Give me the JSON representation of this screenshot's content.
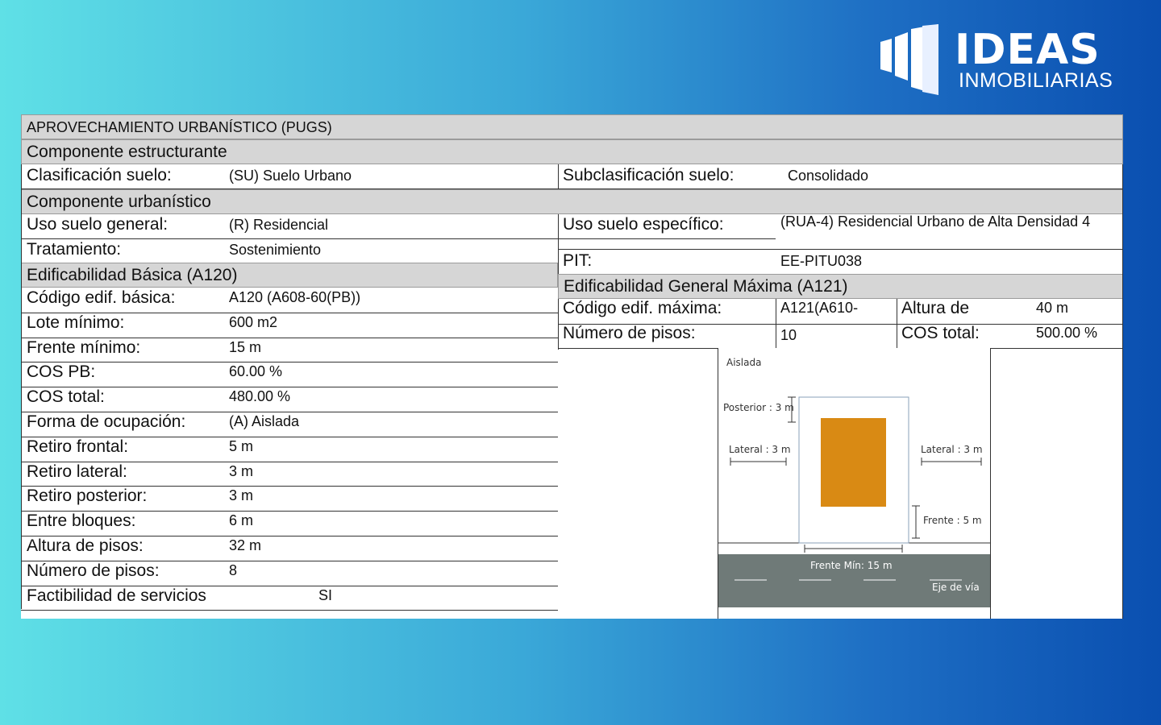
{
  "logo": {
    "word": "IDEAS",
    "sub": "INMOBILIARIAS"
  },
  "doc": {
    "title": "APROVECHAMIENTO URBANÍSTICO (PUGS)",
    "estructurante": "Componente  estructurante",
    "urbanistico": "Componente  urbanístico",
    "basica": "Edificabilidad Básica (A120)",
    "maxima": "Edificabilidad General Máxima (A121)",
    "clasificacion": {
      "label": "Clasificación suelo:",
      "value": "(SU) Suelo Urbano"
    },
    "subclasificacion": {
      "label": "Subclasificación suelo:",
      "value": "Consolidado"
    },
    "uso_general": {
      "label": "Uso suelo general:",
      "value": "(R) Residencial"
    },
    "uso_especifico": {
      "label": "Uso suelo específico:",
      "value": "(RUA-4) Residencial Urbano de Alta Densidad 4"
    },
    "tratamiento": {
      "label": "Tratamiento:",
      "value": "Sostenimiento"
    },
    "pit": {
      "label": "PIT:",
      "value": "EE-PITU038"
    },
    "left_rows": [
      {
        "label": "Código edif. básica:",
        "value": "A120 (A608-60(PB))"
      },
      {
        "label": "Lote mínimo:",
        "value": "600 m2"
      },
      {
        "label": "Frente mínimo:",
        "value": "15 m"
      },
      {
        "label": "COS PB:",
        "value": "60.00 %"
      },
      {
        "label": "COS total:",
        "value": "480.00 %"
      },
      {
        "label": "Forma de ocupación:",
        "value": "(A) Aislada"
      },
      {
        "label": "Retiro frontal:",
        "value": "5 m"
      },
      {
        "label": "Retiro lateral:",
        "value": "3 m"
      },
      {
        "label": "Retiro posterior:",
        "value": "3 m"
      },
      {
        "label": "Entre bloques:",
        "value": "6 m"
      },
      {
        "label": "Altura de pisos:",
        "value": "32 m"
      },
      {
        "label": "Número de pisos:",
        "value": "8"
      },
      {
        "label": "Factibilidad de servicios",
        "value": "SI"
      }
    ],
    "codigo_max": {
      "label": "Código edif. máxima:",
      "value": "A121(A610-"
    },
    "altura": {
      "label": "Altura de",
      "value": "40 m"
    },
    "pisos_max": {
      "label": "Número de pisos:",
      "value": "10"
    },
    "cos_total_max": {
      "label": "COS total:",
      "value": "500.00 %"
    }
  },
  "diagram": {
    "aislada": "Aislada",
    "posterior": "Posterior : 3 m",
    "lateral_left": "Lateral : 3 m",
    "lateral_right": "Lateral : 3 m",
    "frente": "Frente : 5 m",
    "frente_min": "Frente Mín: 15 m",
    "eje": "Eje de vía",
    "building_color": "#d98a14",
    "road_color": "#6f7a78"
  }
}
